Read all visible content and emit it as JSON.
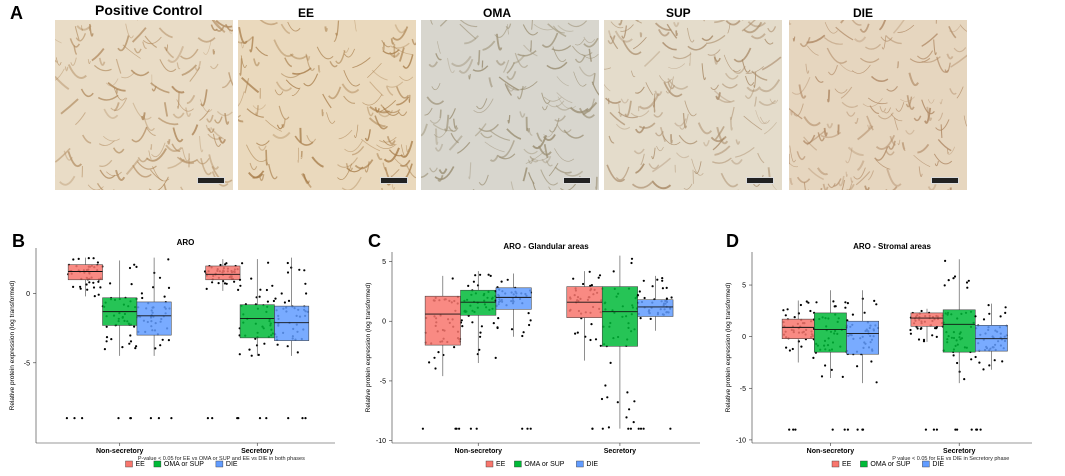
{
  "panel_a": {
    "letter": "A",
    "images": [
      {
        "label": "Positive Control",
        "base": "#e9dcc6",
        "ink": "#b08a5e"
      },
      {
        "label": "EE",
        "base": "#ead9bd",
        "ink": "#a9804e"
      },
      {
        "label": "OMA",
        "base": "#d8d6ce",
        "ink": "#9a8e73"
      },
      {
        "label": "SUP",
        "base": "#e4dccb",
        "ink": "#a88a68"
      },
      {
        "label": "DIE",
        "base": "#e6d6bf",
        "ink": "#b08a66"
      }
    ]
  },
  "legend": {
    "items": [
      {
        "label": "EE",
        "color": "#f8766d"
      },
      {
        "label": "OMA or SUP",
        "color": "#00ba38"
      },
      {
        "label": "DIE",
        "color": "#619cff"
      }
    ]
  },
  "chart_data": [
    {
      "letter": "B",
      "type": "box",
      "title": "ARO",
      "ylabel": "Relative protein expression (log transformed)",
      "categories": [
        "Non-secretory",
        "Secretory"
      ],
      "ylim": [
        -10.8,
        3.3
      ],
      "yticks": [
        -5,
        0
      ],
      "footnote": "P-value < 0.05 for EE vs OMA or SUP and EE vs DIE in both phases",
      "series": [
        {
          "name": "EE",
          "boxes": [
            {
              "q1": 1.0,
              "median": 1.6,
              "q3": 2.1,
              "lo": -0.2,
              "hi": 2.6
            },
            {
              "q1": 1.0,
              "median": 1.4,
              "q3": 2.0,
              "lo": 0.2,
              "hi": 2.5
            }
          ]
        },
        {
          "name": "OMA or SUP",
          "boxes": [
            {
              "q1": -2.3,
              "median": -1.3,
              "q3": -0.3,
              "lo": -4.5,
              "hi": 2.4
            },
            {
              "q1": -3.2,
              "median": -1.8,
              "q3": -0.8,
              "lo": -4.5,
              "hi": 2.5
            }
          ]
        },
        {
          "name": "DIE",
          "boxes": [
            {
              "q1": -3.0,
              "median": -1.6,
              "q3": -0.6,
              "lo": -4.5,
              "hi": 2.6
            },
            {
              "q1": -3.4,
              "median": -2.1,
              "q3": -0.9,
              "lo": -4.5,
              "hi": 2.6
            }
          ]
        }
      ]
    },
    {
      "letter": "C",
      "type": "box",
      "title": "ARO - Glandular areas",
      "ylabel": "Relative protein expression (log transformed)",
      "categories": [
        "Non-secretory",
        "Secretory"
      ],
      "ylim": [
        -10.2,
        5.8
      ],
      "yticks": [
        -10,
        -5,
        0,
        5
      ],
      "footnote": "",
      "series": [
        {
          "name": "EE",
          "boxes": [
            {
              "q1": -2.0,
              "median": 0.6,
              "q3": 2.1,
              "lo": -4.6,
              "hi": 3.8
            },
            {
              "q1": 0.3,
              "median": 1.6,
              "q3": 2.9,
              "lo": -3.3,
              "hi": 4.2
            }
          ]
        },
        {
          "name": "OMA or SUP",
          "boxes": [
            {
              "q1": 0.5,
              "median": 1.6,
              "q3": 2.6,
              "lo": -3.5,
              "hi": 4.2
            },
            {
              "q1": -2.1,
              "median": 0.8,
              "q3": 2.9,
              "lo": -9.0,
              "hi": 5.5
            }
          ]
        },
        {
          "name": "DIE",
          "boxes": [
            {
              "q1": 1.0,
              "median": 2.0,
              "q3": 2.8,
              "lo": -1.3,
              "hi": 4.0
            },
            {
              "q1": 0.4,
              "median": 1.2,
              "q3": 1.8,
              "lo": -0.8,
              "hi": 3.8
            }
          ]
        }
      ]
    },
    {
      "letter": "D",
      "type": "box",
      "title": "ARO - Stromal areas",
      "ylabel": "Relative protein expression (log transformed)",
      "categories": [
        "Non-secretory",
        "Secretory"
      ],
      "ylim": [
        -10.3,
        8.2
      ],
      "yticks": [
        -10,
        -5,
        0,
        5
      ],
      "footnote": "P value < 0.05 for EE vs DIE in Secretory phase",
      "series": [
        {
          "name": "EE",
          "boxes": [
            {
              "q1": -0.2,
              "median": 0.9,
              "q3": 1.7,
              "lo": -2.5,
              "hi": 3.5
            },
            {
              "q1": 1.0,
              "median": 1.8,
              "q3": 2.3,
              "lo": -0.5,
              "hi": 2.7
            }
          ]
        },
        {
          "name": "OMA or SUP",
          "boxes": [
            {
              "q1": -1.5,
              "median": 0.7,
              "q3": 2.3,
              "lo": -4.0,
              "hi": 4.5
            },
            {
              "q1": -1.5,
              "median": 1.2,
              "q3": 2.6,
              "lo": -4.5,
              "hi": 7.5
            }
          ]
        },
        {
          "name": "DIE",
          "boxes": [
            {
              "q1": -1.7,
              "median": 0.3,
              "q3": 1.5,
              "lo": -4.5,
              "hi": 4.5
            },
            {
              "q1": -1.4,
              "median": -0.2,
              "q3": 1.1,
              "lo": -3.2,
              "hi": 3.2
            }
          ]
        }
      ]
    }
  ]
}
